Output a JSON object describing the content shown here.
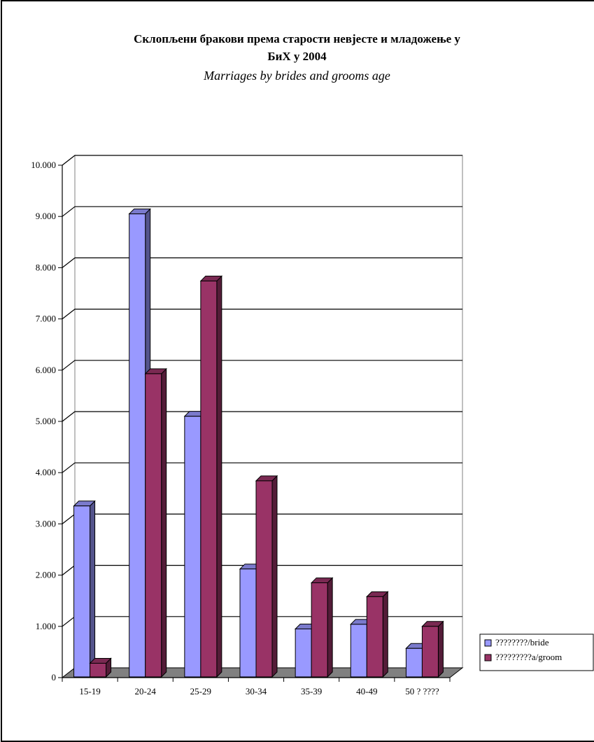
{
  "chart_data": {
    "type": "bar",
    "title": "Склопљени бракови према старости невјесте и младожење у БиХ у 2004",
    "title_lines": [
      "Склопљени бракови према старости невјесте и младожење у",
      "БиХ у 2004"
    ],
    "subtitle": "Marriages by brides and grooms age",
    "categories": [
      "15-19",
      "20-24",
      "25-29",
      "30-34",
      "35-39",
      "40-49",
      "50 ? ????"
    ],
    "series": [
      {
        "name": "????????/bride",
        "values": [
          3350,
          9050,
          5100,
          2120,
          950,
          1040,
          570
        ],
        "color": "#9999ff"
      },
      {
        "name": "?????????a/groom",
        "values": [
          280,
          5930,
          7740,
          3840,
          1850,
          1580,
          1000
        ],
        "color": "#993366"
      }
    ],
    "ylim": [
      0,
      10000
    ],
    "yticks": [
      0,
      1000,
      2000,
      3000,
      4000,
      5000,
      6000,
      7000,
      8000,
      9000,
      10000
    ],
    "ytick_labels": [
      "0",
      "1.000",
      "2.000",
      "3.000",
      "4.000",
      "5.000",
      "6.000",
      "7.000",
      "8.000",
      "9.000",
      "10.000"
    ],
    "xlabel": "",
    "ylabel": "",
    "grid": true,
    "legend_position": "right",
    "style": "3d-clustered-column"
  }
}
